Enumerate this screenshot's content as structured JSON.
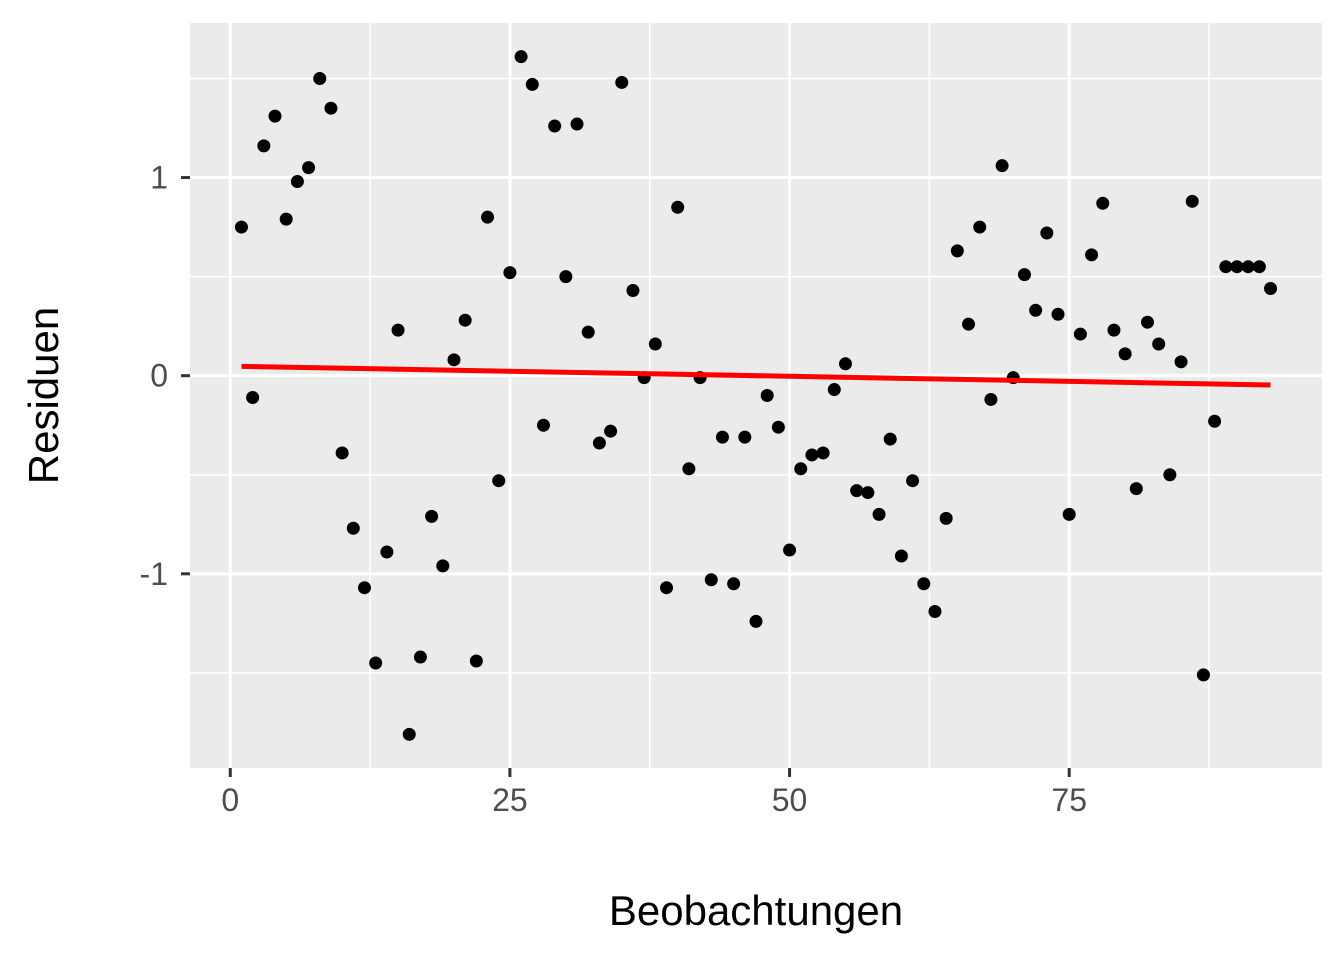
{
  "chart_data": {
    "type": "scatter",
    "xlabel": "Beobachtungen",
    "ylabel": "Residuen",
    "xlim": [
      -3.6,
      97.6
    ],
    "ylim": [
      -1.98,
      1.78
    ],
    "x_ticks": [
      0,
      25,
      50,
      75
    ],
    "x_tick_labels": [
      "0",
      "25",
      "50",
      "75"
    ],
    "x_minor_ticks": [
      12.5,
      37.5,
      62.5,
      87.5
    ],
    "y_ticks": [
      -1,
      0,
      1
    ],
    "y_tick_labels": [
      "-1",
      "0",
      "1"
    ],
    "y_minor_ticks": [
      -1.5,
      -0.5,
      0.5,
      1.5
    ],
    "grid": true,
    "panel_background": "#EBEBEB",
    "grid_color": "#FFFFFF",
    "point_color": "#000000",
    "series": [
      {
        "values": [
          [
            1,
            0.75
          ],
          [
            2,
            -0.11
          ],
          [
            3,
            1.16
          ],
          [
            4,
            1.31
          ],
          [
            5,
            0.79
          ],
          [
            6,
            0.98
          ],
          [
            7,
            1.05
          ],
          [
            8,
            1.5
          ],
          [
            9,
            1.35
          ],
          [
            10,
            -0.39
          ],
          [
            11,
            -0.77
          ],
          [
            12,
            -1.07
          ],
          [
            13,
            -1.45
          ],
          [
            14,
            -0.89
          ],
          [
            15,
            0.23
          ],
          [
            16,
            -1.81
          ],
          [
            17,
            -1.42
          ],
          [
            18,
            -0.71
          ],
          [
            19,
            -0.96
          ],
          [
            20,
            0.08
          ],
          [
            21,
            0.28
          ],
          [
            22,
            -1.44
          ],
          [
            23,
            0.8
          ],
          [
            24,
            -0.53
          ],
          [
            25,
            0.52
          ],
          [
            26,
            1.61
          ],
          [
            27,
            1.47
          ],
          [
            28,
            -0.25
          ],
          [
            29,
            1.26
          ],
          [
            30,
            0.5
          ],
          [
            31,
            1.27
          ],
          [
            32,
            0.22
          ],
          [
            33,
            -0.34
          ],
          [
            34,
            -0.28
          ],
          [
            35,
            1.48
          ],
          [
            36,
            0.43
          ],
          [
            37,
            -0.01
          ],
          [
            38,
            0.16
          ],
          [
            39,
            -1.07
          ],
          [
            40,
            0.85
          ],
          [
            41,
            -0.47
          ],
          [
            42,
            -0.01
          ],
          [
            43,
            -1.03
          ],
          [
            44,
            -0.31
          ],
          [
            45,
            -1.05
          ],
          [
            46,
            -0.31
          ],
          [
            47,
            -1.24
          ],
          [
            48,
            -0.1
          ],
          [
            49,
            -0.26
          ],
          [
            50,
            -0.88
          ],
          [
            51,
            -0.47
          ],
          [
            52,
            -0.4
          ],
          [
            53,
            -0.39
          ],
          [
            54,
            -0.07
          ],
          [
            55,
            0.06
          ],
          [
            56,
            -0.58
          ],
          [
            57,
            -0.59
          ],
          [
            58,
            -0.7
          ],
          [
            59,
            -0.32
          ],
          [
            60,
            -0.91
          ],
          [
            61,
            -0.53
          ],
          [
            62,
            -1.05
          ],
          [
            63,
            -1.19
          ],
          [
            64,
            -0.72
          ],
          [
            65,
            0.63
          ],
          [
            66,
            0.26
          ],
          [
            67,
            0.75
          ],
          [
            68,
            -0.12
          ],
          [
            69,
            1.06
          ],
          [
            70,
            -0.01
          ],
          [
            71,
            0.51
          ],
          [
            72,
            0.33
          ],
          [
            73,
            0.72
          ],
          [
            74,
            0.31
          ],
          [
            75,
            -0.7
          ],
          [
            76,
            0.21
          ],
          [
            77,
            0.61
          ],
          [
            78,
            0.87
          ],
          [
            79,
            0.23
          ],
          [
            80,
            0.11
          ],
          [
            81,
            -0.57
          ],
          [
            82,
            0.27
          ],
          [
            83,
            0.16
          ],
          [
            84,
            -0.5
          ],
          [
            85,
            0.07
          ],
          [
            86,
            0.88
          ],
          [
            87,
            -1.51
          ],
          [
            88,
            -0.23
          ],
          [
            89,
            0.55
          ],
          [
            90,
            0.55
          ],
          [
            91,
            0.55
          ],
          [
            92,
            0.55
          ],
          [
            93,
            0.44
          ]
        ]
      }
    ],
    "trend_line": {
      "color": "#FF0000",
      "x": [
        1,
        93
      ],
      "y": [
        0.047,
        -0.047
      ]
    }
  }
}
